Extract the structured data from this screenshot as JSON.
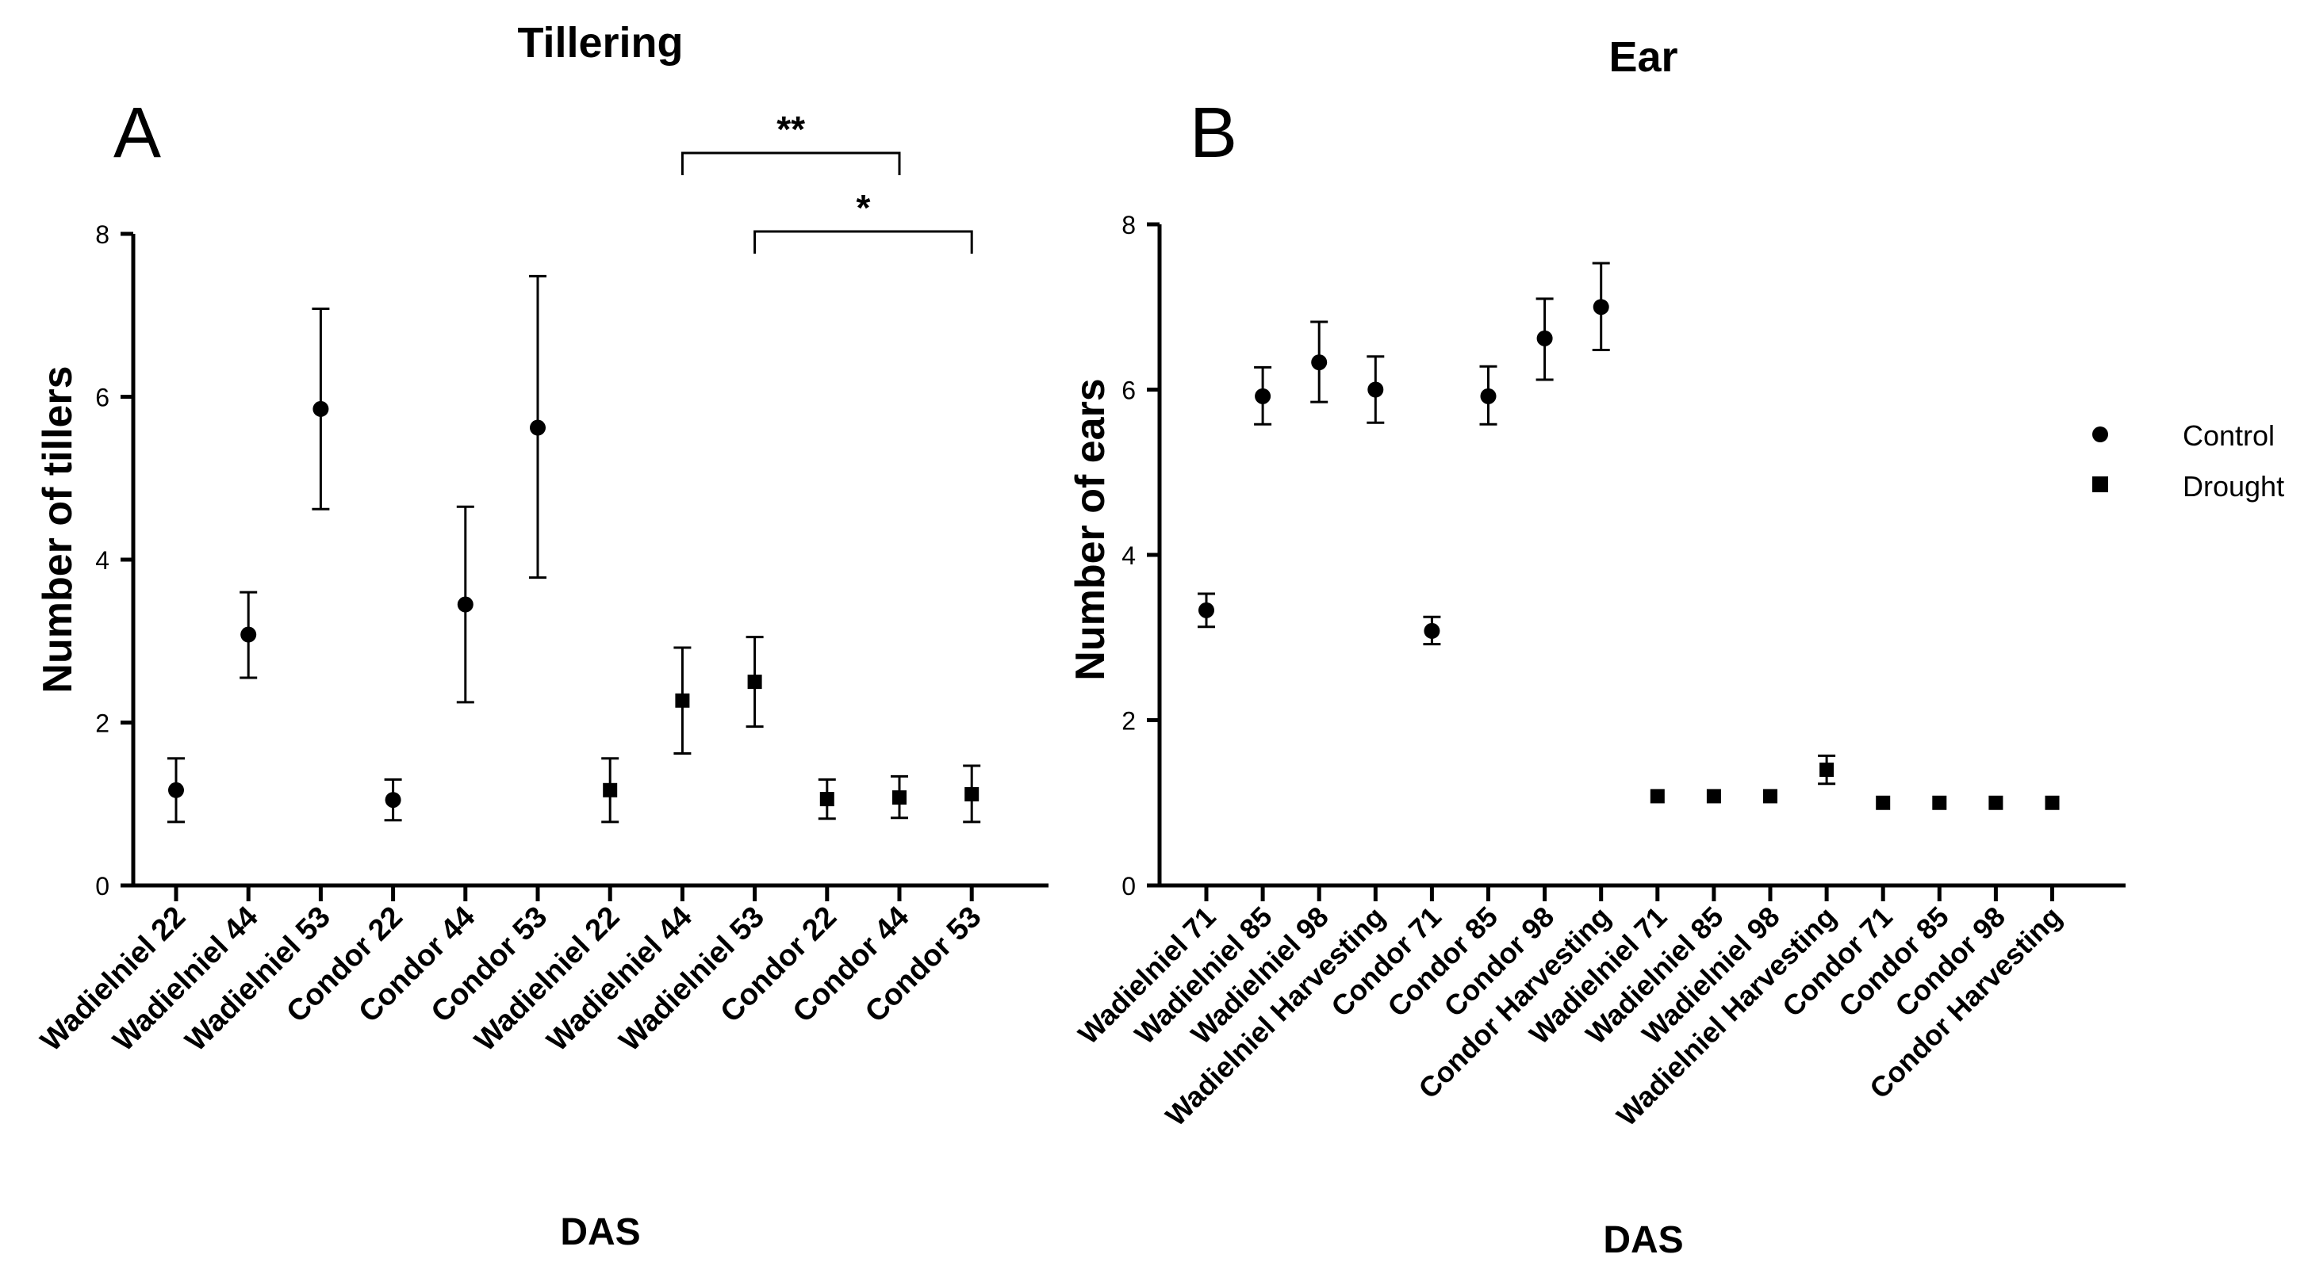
{
  "chart_data": [
    {
      "type": "scatter",
      "panel_label": "A",
      "title": "Tillering",
      "xlabel": "DAS",
      "ylabel": "Number of tillers",
      "ylim": [
        0,
        8
      ],
      "yticks": [
        "0",
        "2",
        "4",
        "6",
        "8"
      ],
      "categories": [
        "Wadielniel 22",
        "Wadielniel 44",
        "Wadielniel 53",
        "Condor 22",
        "Condor 44",
        "Condor 53",
        "Wadielniel 22",
        "Wadielniel 44",
        "Wadielniel 53",
        "Condor 22",
        "Condor 44",
        "Condor 53"
      ],
      "series": [
        {
          "name": "Control",
          "marker": "circle",
          "slots": [
            0,
            1,
            2,
            3,
            4,
            5
          ],
          "values": [
            1.17,
            3.08,
            5.85,
            1.05,
            3.45,
            5.62
          ],
          "err_low": [
            0.78,
            2.55,
            4.62,
            0.8,
            2.25,
            3.78
          ],
          "err_high": [
            1.56,
            3.6,
            7.08,
            1.3,
            4.65,
            7.48
          ]
        },
        {
          "name": "Drought",
          "marker": "square",
          "slots": [
            6,
            7,
            8,
            9,
            10,
            11
          ],
          "values": [
            1.17,
            2.27,
            2.5,
            1.06,
            1.08,
            1.12
          ],
          "err_low": [
            0.78,
            1.62,
            1.95,
            0.82,
            0.83,
            0.78
          ],
          "err_high": [
            1.56,
            2.92,
            3.05,
            1.3,
            1.34,
            1.47
          ]
        }
      ],
      "significance": [
        {
          "from_slot": 7,
          "to_slot": 10,
          "label": "**"
        },
        {
          "from_slot": 8,
          "to_slot": 11,
          "label": "*"
        }
      ]
    },
    {
      "type": "scatter",
      "panel_label": "B",
      "title": "Ear",
      "xlabel": "DAS",
      "ylabel": "Number of ears",
      "ylim": [
        0,
        8
      ],
      "yticks": [
        "0",
        "2",
        "4",
        "6",
        "8"
      ],
      "categories": [
        "Wadielniel 71",
        "Wadielniel 85",
        "Wadielniel 98",
        "Wadielniel Harvesting",
        "Condor 71",
        "Condor 85",
        "Condor 98",
        "Condor Harvesting",
        "Wadielniel 71",
        "Wadielniel 85",
        "Wadielniel 98",
        "Wadielniel Harvesting",
        "Condor 71",
        "Condor 85",
        "Condor 98",
        "Condor Harvesting"
      ],
      "series": [
        {
          "name": "Control",
          "marker": "circle",
          "slots": [
            0,
            1,
            2,
            3,
            4,
            5,
            6,
            7
          ],
          "values": [
            3.33,
            5.92,
            6.33,
            6.0,
            3.08,
            5.92,
            6.62,
            7.0
          ],
          "err_low": [
            3.13,
            5.58,
            5.85,
            5.6,
            2.92,
            5.58,
            6.12,
            6.48
          ],
          "err_high": [
            3.53,
            6.27,
            6.82,
            6.4,
            3.25,
            6.28,
            7.1,
            7.53
          ]
        },
        {
          "name": "Drought",
          "marker": "square",
          "slots": [
            8,
            9,
            10,
            11,
            12,
            13,
            14,
            15
          ],
          "values": [
            1.08,
            1.08,
            1.08,
            1.4,
            1.0,
            1.0,
            1.0,
            1.0
          ],
          "err_low": [
            1.08,
            1.08,
            1.08,
            1.23,
            1.0,
            1.0,
            1.0,
            1.0
          ],
          "err_high": [
            1.08,
            1.08,
            1.08,
            1.57,
            1.0,
            1.0,
            1.0,
            1.0
          ]
        }
      ]
    }
  ],
  "legend": {
    "placement": "right",
    "items": [
      {
        "label": "Control",
        "marker": "circle"
      },
      {
        "label": "Drought",
        "marker": "square"
      }
    ]
  }
}
